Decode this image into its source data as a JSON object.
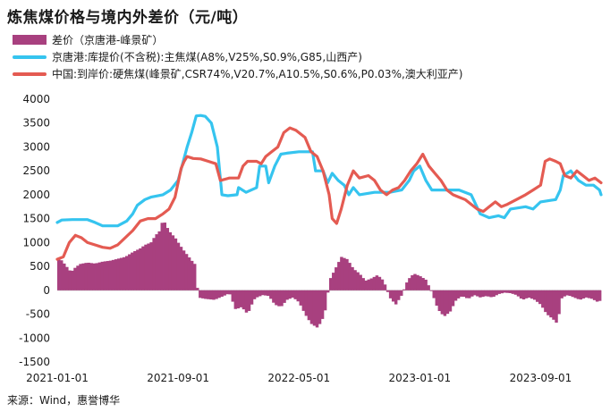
{
  "title": "炼焦煤价格与境内外差价（元/吨）",
  "source": "来源：Wind，惠誉博华",
  "chart_data": {
    "type": "line+bar",
    "ylim": [
      -1500,
      4000
    ],
    "yticks": [
      -1500,
      -1000,
      -500,
      0,
      500,
      1000,
      1500,
      2000,
      2500,
      3000,
      3500,
      4000
    ],
    "xlim": [
      0,
      36
    ],
    "xticks": [
      {
        "label": "2021-01-01",
        "pos": 0
      },
      {
        "label": "2021-09-01",
        "pos": 8
      },
      {
        "label": "2022-05-01",
        "pos": 16
      },
      {
        "label": "2023-01-01",
        "pos": 24
      },
      {
        "label": "2023-09-01",
        "pos": 32
      }
    ],
    "series": [
      {
        "name": "差价（京唐港-峰景矿）",
        "kind": "bar",
        "color": "#a8407f",
        "points": [
          [
            0,
            700
          ],
          [
            0.3,
            620
          ],
          [
            0.6,
            500
          ],
          [
            0.9,
            380
          ],
          [
            1.2,
            480
          ],
          [
            1.5,
            550
          ],
          [
            2,
            580
          ],
          [
            2.5,
            560
          ],
          [
            3,
            600
          ],
          [
            3.5,
            620
          ],
          [
            4,
            660
          ],
          [
            4.5,
            700
          ],
          [
            5,
            800
          ],
          [
            5.5,
            880
          ],
          [
            5.8,
            950
          ],
          [
            6.2,
            1000
          ],
          [
            6.5,
            1150
          ],
          [
            6.8,
            1250
          ],
          [
            7,
            1500
          ],
          [
            7.2,
            1350
          ],
          [
            7.5,
            1200
          ],
          [
            7.8,
            1100
          ],
          [
            8.1,
            950
          ],
          [
            8.4,
            820
          ],
          [
            8.7,
            700
          ],
          [
            9,
            580
          ],
          [
            9.2,
            520
          ],
          [
            9.3,
            -150
          ],
          [
            9.8,
            -180
          ],
          [
            10.4,
            -200
          ],
          [
            11,
            -120
          ],
          [
            11.4,
            -60
          ],
          [
            11.8,
            -400
          ],
          [
            12.2,
            -350
          ],
          [
            12.6,
            -500
          ],
          [
            13,
            -200
          ],
          [
            13.2,
            -150
          ],
          [
            13.6,
            -100
          ],
          [
            14,
            -120
          ],
          [
            14.4,
            -300
          ],
          [
            14.8,
            -350
          ],
          [
            15.2,
            -200
          ],
          [
            15.6,
            -150
          ],
          [
            16,
            -250
          ],
          [
            16.4,
            -500
          ],
          [
            16.8,
            -700
          ],
          [
            17.2,
            -780
          ],
          [
            17.5,
            -650
          ],
          [
            17.8,
            -350
          ],
          [
            18,
            200
          ],
          [
            18.4,
            450
          ],
          [
            18.8,
            700
          ],
          [
            19.2,
            650
          ],
          [
            19.6,
            450
          ],
          [
            20,
            350
          ],
          [
            20.4,
            200
          ],
          [
            20.8,
            250
          ],
          [
            21.2,
            320
          ],
          [
            21.6,
            200
          ],
          [
            22,
            -150
          ],
          [
            22.4,
            -300
          ],
          [
            22.8,
            -100
          ],
          [
            23.2,
            220
          ],
          [
            23.6,
            350
          ],
          [
            24,
            300
          ],
          [
            24.4,
            220
          ],
          [
            24.8,
            -50
          ],
          [
            25.2,
            -400
          ],
          [
            25.6,
            -550
          ],
          [
            26,
            -450
          ],
          [
            26.4,
            -200
          ],
          [
            26.8,
            -120
          ],
          [
            27.2,
            -180
          ],
          [
            27.6,
            -100
          ],
          [
            28,
            -150
          ],
          [
            28.4,
            -120
          ],
          [
            28.8,
            -150
          ],
          [
            29.2,
            -80
          ],
          [
            29.6,
            -50
          ],
          [
            30,
            -60
          ],
          [
            30.4,
            -100
          ],
          [
            30.8,
            -200
          ],
          [
            31.2,
            -150
          ],
          [
            31.6,
            -200
          ],
          [
            32,
            -300
          ],
          [
            32.4,
            -500
          ],
          [
            32.8,
            -600
          ],
          [
            33.1,
            -700
          ],
          [
            33.4,
            -150
          ],
          [
            33.8,
            -100
          ],
          [
            34.2,
            -150
          ],
          [
            34.6,
            -200
          ],
          [
            35,
            -150
          ],
          [
            35.4,
            -180
          ],
          [
            35.8,
            -250
          ],
          [
            36,
            -200
          ]
        ]
      },
      {
        "name": "京唐港:库提价(不含税):主焦煤(A8%,V25%,S0.9%,G85,山西产)",
        "kind": "line",
        "color": "#35c4ef",
        "points": [
          [
            0,
            1420
          ],
          [
            0.3,
            1470
          ],
          [
            1,
            1480
          ],
          [
            2,
            1480
          ],
          [
            2.5,
            1420
          ],
          [
            3,
            1350
          ],
          [
            4,
            1350
          ],
          [
            4.6,
            1450
          ],
          [
            5,
            1600
          ],
          [
            5.3,
            1780
          ],
          [
            5.8,
            1900
          ],
          [
            6.2,
            1950
          ],
          [
            7,
            2000
          ],
          [
            7.5,
            2100
          ],
          [
            8,
            2300
          ],
          [
            8.3,
            2650
          ],
          [
            8.6,
            3000
          ],
          [
            8.9,
            3300
          ],
          [
            9.2,
            3650
          ],
          [
            9.5,
            3660
          ],
          [
            9.8,
            3640
          ],
          [
            10.2,
            3500
          ],
          [
            10.6,
            3000
          ],
          [
            10.9,
            2000
          ],
          [
            11.3,
            1980
          ],
          [
            11.9,
            2000
          ],
          [
            12,
            2150
          ],
          [
            12.5,
            2050
          ],
          [
            13.2,
            2150
          ],
          [
            13.4,
            2600
          ],
          [
            13.8,
            2600
          ],
          [
            14,
            2250
          ],
          [
            14.4,
            2600
          ],
          [
            14.8,
            2850
          ],
          [
            15.2,
            2870
          ],
          [
            16,
            2900
          ],
          [
            16.5,
            2900
          ],
          [
            16.9,
            2900
          ],
          [
            17.1,
            2500
          ],
          [
            17.6,
            2500
          ],
          [
            17.9,
            2250
          ],
          [
            18.2,
            2450
          ],
          [
            18.6,
            2300
          ],
          [
            19,
            2200
          ],
          [
            19.3,
            2000
          ],
          [
            19.6,
            2150
          ],
          [
            20,
            2000
          ],
          [
            21,
            2050
          ],
          [
            22,
            2050
          ],
          [
            22.8,
            2100
          ],
          [
            23.3,
            2300
          ],
          [
            23.6,
            2500
          ],
          [
            24,
            2600
          ],
          [
            24.4,
            2300
          ],
          [
            24.8,
            2100
          ],
          [
            25.6,
            2100
          ],
          [
            26.6,
            2100
          ],
          [
            27.4,
            2000
          ],
          [
            28,
            1600
          ],
          [
            28.6,
            1520
          ],
          [
            29.2,
            1560
          ],
          [
            29.6,
            1520
          ],
          [
            30,
            1700
          ],
          [
            31,
            1750
          ],
          [
            31.5,
            1700
          ],
          [
            32,
            1850
          ],
          [
            32.6,
            1880
          ],
          [
            33,
            1900
          ],
          [
            33.3,
            2100
          ],
          [
            33.5,
            2400
          ],
          [
            34,
            2500
          ],
          [
            34.5,
            2300
          ],
          [
            35,
            2200
          ],
          [
            35.5,
            2200
          ],
          [
            35.9,
            2100
          ],
          [
            36,
            2000
          ]
        ]
      },
      {
        "name": "中国:到岸价:硬焦煤(峰景矿,CSR74%,V20.7%,A10.5%,S0.6%,P0.03%,澳大利亚产)",
        "kind": "line",
        "color": "#e45b52",
        "points": [
          [
            0,
            650
          ],
          [
            0.4,
            700
          ],
          [
            0.8,
            1000
          ],
          [
            1.2,
            1150
          ],
          [
            1.6,
            1100
          ],
          [
            2,
            1000
          ],
          [
            2.5,
            950
          ],
          [
            3,
            900
          ],
          [
            3.5,
            880
          ],
          [
            4,
            950
          ],
          [
            4.5,
            1100
          ],
          [
            5,
            1250
          ],
          [
            5.5,
            1450
          ],
          [
            6,
            1500
          ],
          [
            6.5,
            1500
          ],
          [
            7,
            1600
          ],
          [
            7.4,
            1700
          ],
          [
            7.8,
            1950
          ],
          [
            8,
            2250
          ],
          [
            8.2,
            2550
          ],
          [
            8.4,
            2700
          ],
          [
            8.6,
            2800
          ],
          [
            9,
            2760
          ],
          [
            9.5,
            2750
          ],
          [
            10,
            2700
          ],
          [
            10.5,
            2650
          ],
          [
            10.8,
            2300
          ],
          [
            11.4,
            2350
          ],
          [
            12,
            2350
          ],
          [
            12.3,
            2600
          ],
          [
            12.6,
            2700
          ],
          [
            13.2,
            2700
          ],
          [
            13.5,
            2650
          ],
          [
            13.8,
            2800
          ],
          [
            14.2,
            2900
          ],
          [
            14.6,
            3000
          ],
          [
            15,
            3300
          ],
          [
            15.4,
            3400
          ],
          [
            15.8,
            3350
          ],
          [
            16.4,
            3200
          ],
          [
            16.8,
            2900
          ],
          [
            17.2,
            2800
          ],
          [
            17.6,
            2500
          ],
          [
            18,
            2000
          ],
          [
            18.2,
            1500
          ],
          [
            18.5,
            1400
          ],
          [
            18.8,
            1700
          ],
          [
            19.2,
            2200
          ],
          [
            19.6,
            2500
          ],
          [
            20,
            2350
          ],
          [
            20.6,
            2400
          ],
          [
            21,
            2300
          ],
          [
            21.4,
            2100
          ],
          [
            21.8,
            2000
          ],
          [
            22.2,
            2100
          ],
          [
            22.6,
            2150
          ],
          [
            23,
            2300
          ],
          [
            23.4,
            2500
          ],
          [
            23.8,
            2650
          ],
          [
            24.2,
            2850
          ],
          [
            24.6,
            2600
          ],
          [
            25,
            2450
          ],
          [
            25.4,
            2300
          ],
          [
            25.8,
            2100
          ],
          [
            26.2,
            2000
          ],
          [
            26.6,
            1950
          ],
          [
            27,
            1900
          ],
          [
            27.4,
            1800
          ],
          [
            27.8,
            1700
          ],
          [
            28.2,
            1650
          ],
          [
            28.6,
            1750
          ],
          [
            29,
            1850
          ],
          [
            29.4,
            1750
          ],
          [
            29.8,
            1800
          ],
          [
            30.4,
            1900
          ],
          [
            31,
            2000
          ],
          [
            31.5,
            2100
          ],
          [
            32,
            2200
          ],
          [
            32.3,
            2700
          ],
          [
            32.6,
            2750
          ],
          [
            33,
            2700
          ],
          [
            33.3,
            2650
          ],
          [
            33.6,
            2400
          ],
          [
            34,
            2350
          ],
          [
            34.4,
            2500
          ],
          [
            34.8,
            2400
          ],
          [
            35.2,
            2300
          ],
          [
            35.6,
            2350
          ],
          [
            36,
            2250
          ]
        ]
      }
    ]
  }
}
